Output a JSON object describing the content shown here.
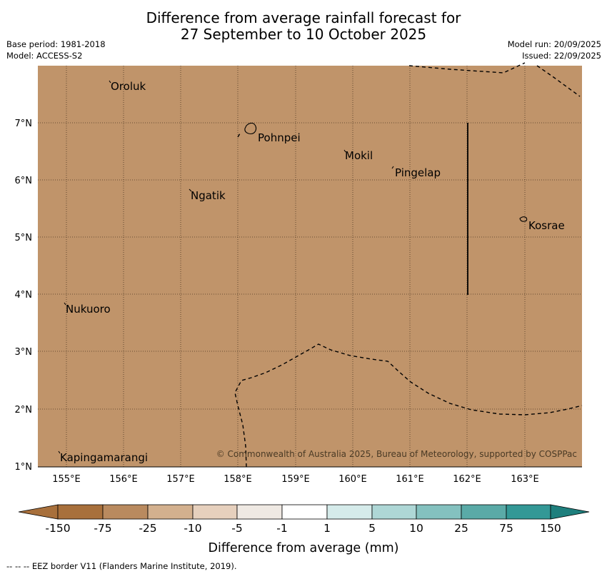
{
  "title_line1": "Difference from average rainfall forecast for",
  "title_line2": "27 September to 10 October 2025",
  "base_period": "Base period: 1981-2018",
  "model": "Model: ACCESS-S2",
  "model_run": "Model run: 20/09/2025",
  "issued": "Issued: 22/09/2025",
  "map": {
    "fill_color": "#c0946a",
    "lat_labels": [
      "7°N",
      "6°N",
      "5°N",
      "4°N",
      "3°N",
      "2°N",
      "1°N"
    ],
    "lon_labels": [
      "155°E",
      "156°E",
      "157°E",
      "158°E",
      "159°E",
      "160°E",
      "161°E",
      "162°E",
      "163°E"
    ],
    "places": [
      "Oroluk",
      "Pohnpei",
      "Mokil",
      "Pingelap",
      "Ngatik",
      "Kosrae",
      "Nukuoro",
      "Kapingamarangi"
    ],
    "copyright": "© Commonwealth of Australia 2025, Bureau of Meteorology, supported by COSPPac"
  },
  "colorbar": {
    "labels": [
      "-150",
      "-75",
      "-25",
      "-10",
      "-5",
      "-1",
      "1",
      "5",
      "10",
      "25",
      "75",
      "150"
    ],
    "colors": [
      "#a8703c",
      "#b98a5f",
      "#d3b08e",
      "#e6d0bd",
      "#efe9e3",
      "#ffffff",
      "#d5ebea",
      "#aed7d6",
      "#84c1bf",
      "#5aaaa7",
      "#339896",
      "#1e7f7d"
    ],
    "title": "Difference from average (mm)"
  },
  "eez_note": "--  --  -- EEZ border V11 (Flanders Marine Institute, 2019)."
}
